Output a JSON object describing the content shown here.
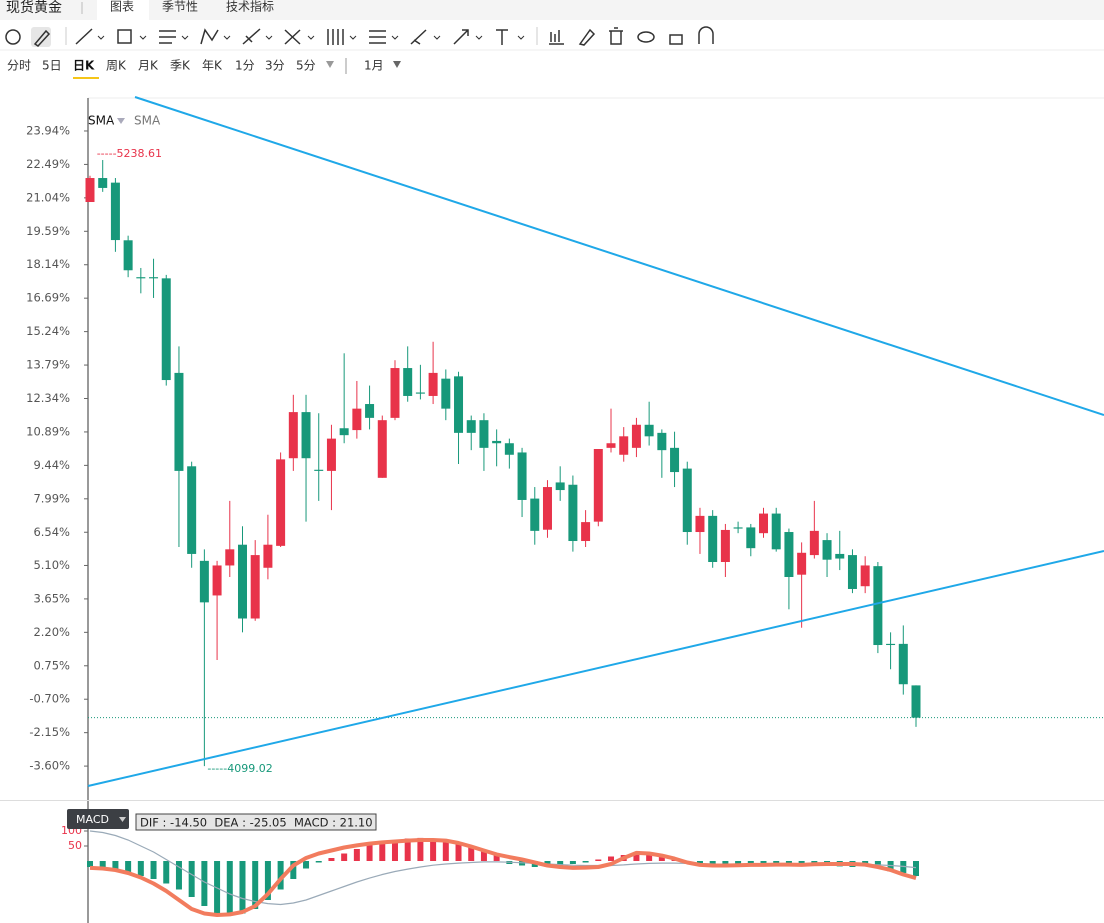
{
  "header": {
    "symbol": "现货黄金",
    "tabs": [
      "图表",
      "季节性",
      "技术指标"
    ]
  },
  "periods": [
    "分时",
    "5日",
    "日K",
    "周K",
    "月K",
    "季K",
    "年K",
    "1分",
    "3分",
    "5分"
  ],
  "period_extra": "1月",
  "chart_data": [
    {
      "type": "candlestick",
      "indicators": [
        "SMA",
        "SMA"
      ],
      "open": [
        20.86,
        21.9,
        21.7,
        19.2,
        17.6,
        17.6,
        17.55,
        13.45,
        9.4,
        5.3,
        3.8,
        5.1,
        6.0,
        2.8,
        5.0,
        5.95,
        9.75,
        11.75,
        9.25,
        9.2,
        11.05,
        10.97,
        12.1,
        8.9,
        11.5,
        13.66,
        12.6,
        12.45,
        13.2,
        13.3,
        11.4,
        11.4,
        10.5,
        10.4,
        10.0,
        8.0,
        6.65,
        8.7,
        8.6,
        6.16,
        7.0,
        10.2,
        9.9,
        10.2,
        11.2,
        10.85,
        10.2,
        9.3,
        6.55,
        7.25,
        5.25,
        6.75,
        6.75,
        6.5,
        7.35,
        6.55,
        4.7,
        5.55,
        6.2,
        5.6,
        5.55,
        4.2,
        5.07,
        1.7,
        1.7,
        -0.1
      ],
      "high": [
        22.0,
        22.68,
        21.9,
        19.4,
        18.0,
        18.4,
        17.7,
        14.6,
        9.6,
        5.8,
        5.3,
        7.9,
        6.8,
        6.2,
        7.3,
        10.0,
        12.5,
        12.5,
        11.7,
        11.2,
        14.3,
        13.1,
        12.9,
        11.6,
        14.0,
        14.6,
        13.8,
        14.8,
        13.6,
        13.5,
        11.6,
        11.7,
        11.0,
        10.6,
        10.2,
        8.5,
        8.8,
        9.4,
        9.0,
        7.5,
        10.15,
        11.9,
        11.1,
        11.5,
        12.2,
        11.0,
        10.9,
        9.6,
        7.6,
        7.5,
        6.9,
        7.0,
        6.9,
        7.6,
        7.6,
        6.7,
        6.1,
        7.9,
        6.5,
        6.6,
        5.8,
        5.5,
        5.25,
        2.2,
        2.5,
        -0.1
      ],
      "low": [
        20.86,
        21.3,
        18.7,
        17.6,
        16.9,
        16.7,
        12.9,
        5.9,
        5.0,
        -3.6,
        1.0,
        4.6,
        2.2,
        2.7,
        4.5,
        5.9,
        9.2,
        7.0,
        7.9,
        7.5,
        10.4,
        10.6,
        11.0,
        8.9,
        11.4,
        12.2,
        12.3,
        12.1,
        11.4,
        9.5,
        10.1,
        9.2,
        9.4,
        9.3,
        7.2,
        6.0,
        6.3,
        7.9,
        5.7,
        5.9,
        6.8,
        10.0,
        9.6,
        9.8,
        10.3,
        8.9,
        8.5,
        6.0,
        5.6,
        5.0,
        4.6,
        6.5,
        5.5,
        6.3,
        5.7,
        3.2,
        2.4,
        5.4,
        4.6,
        4.9,
        3.9,
        3.9,
        1.3,
        0.6,
        -0.5,
        -1.9
      ],
      "close": [
        21.9,
        21.47,
        19.21,
        17.9,
        17.55,
        17.55,
        13.14,
        9.2,
        5.6,
        3.5,
        5.1,
        5.8,
        2.8,
        5.55,
        6.0,
        9.7,
        11.75,
        9.75,
        9.2,
        10.6,
        10.75,
        11.9,
        11.5,
        11.4,
        13.66,
        12.45,
        12.55,
        13.45,
        11.9,
        10.85,
        10.85,
        10.2,
        10.4,
        9.9,
        7.94,
        6.6,
        8.5,
        8.37,
        6.16,
        6.98,
        10.15,
        10.4,
        10.7,
        11.2,
        10.7,
        10.1,
        9.15,
        6.55,
        7.25,
        5.25,
        6.64,
        6.7,
        5.85,
        7.35,
        5.8,
        4.6,
        5.65,
        6.6,
        5.35,
        5.4,
        4.08,
        5.1,
        1.65,
        1.65,
        -0.05,
        -1.5
      ],
      "up_color": "#e8334a",
      "down_color": "#17987a",
      "max_label": "-----5238.61",
      "min_label": "-----4099.02",
      "ylim": [
        -5.07,
        25.37
      ],
      "yticks": [
        {
          "value": 23.94,
          "label": "23.94%"
        },
        {
          "value": 22.49,
          "label": "22.49%"
        },
        {
          "value": 21.04,
          "label": "21.04%"
        },
        {
          "value": 19.59,
          "label": "19.59%"
        },
        {
          "value": 18.14,
          "label": "18.14%"
        },
        {
          "value": 16.69,
          "label": "16.69%"
        },
        {
          "value": 15.24,
          "label": "15.24%"
        },
        {
          "value": 13.79,
          "label": "13.79%"
        },
        {
          "value": 12.34,
          "label": "12.34%"
        },
        {
          "value": 10.89,
          "label": "10.89%"
        },
        {
          "value": 9.44,
          "label": "9.44%"
        },
        {
          "value": 7.99,
          "label": "7.99%"
        },
        {
          "value": 6.54,
          "label": "6.54%"
        },
        {
          "value": 5.1,
          "label": "5.10%"
        },
        {
          "value": 3.65,
          "label": "3.65%"
        },
        {
          "value": 2.2,
          "label": "2.20%"
        },
        {
          "value": 0.75,
          "label": "0.75%"
        },
        {
          "value": -0.7,
          "label": "-0.70%"
        },
        {
          "value": -2.15,
          "label": "-2.15%"
        },
        {
          "value": -3.6,
          "label": "-3.60%"
        }
      ]
    },
    {
      "type": "macd",
      "title": "MACD",
      "info": "DIF : -14.50  DEA : -25.05  MACD : 21.10",
      "histogram": [
        -20,
        -25,
        -30,
        -40,
        -50,
        -60,
        -75,
        -95,
        -120,
        -150,
        -175,
        -180,
        -175,
        -160,
        -130,
        -95,
        -60,
        -25,
        -5,
        10,
        25,
        40,
        55,
        60,
        70,
        75,
        77,
        72,
        65,
        55,
        45,
        35,
        20,
        -10,
        -15,
        -20,
        -20,
        -15,
        -10,
        -5,
        5,
        15,
        20,
        25,
        20,
        15,
        5,
        -10,
        -15,
        -20,
        -20,
        -18,
        -15,
        -12,
        -15,
        -18,
        -15,
        -12,
        -15,
        -18,
        -20,
        -18,
        -25,
        -35,
        -40,
        -50
      ],
      "dif": [
        -23,
        -25,
        -30,
        -40,
        -55,
        -75,
        -100,
        -130,
        -160,
        -175,
        -180,
        -178,
        -170,
        -150,
        -110,
        -60,
        -15,
        10,
        25,
        35,
        45,
        52,
        58,
        62,
        65,
        68,
        70,
        70,
        68,
        60,
        48,
        35,
        22,
        13,
        5,
        -5,
        -15,
        -20,
        -23,
        -22,
        -20,
        -10,
        10,
        27,
        25,
        18,
        8,
        -5,
        -13,
        -15,
        -15,
        -14,
        -13,
        -13,
        -12,
        -12,
        -13,
        -11,
        -10,
        -10,
        -10,
        -12,
        -20,
        -30,
        -45,
        -57
      ],
      "dea": [
        100,
        95,
        85,
        70,
        50,
        30,
        5,
        -20,
        -45,
        -70,
        -90,
        -110,
        -125,
        -135,
        -142,
        -145,
        -140,
        -130,
        -115,
        -100,
        -85,
        -70,
        -57,
        -45,
        -35,
        -27,
        -20,
        -14,
        -10,
        -7,
        -5,
        -3,
        -3,
        -4,
        -6,
        -8,
        -10,
        -12,
        -14,
        -15,
        -15,
        -15,
        -13,
        -10,
        -8,
        -7,
        -7,
        -8,
        -9,
        -10,
        -11,
        -12,
        -12,
        -12,
        -12,
        -12,
        -12,
        -12,
        -12,
        -12,
        -12,
        -12,
        -13,
        -15,
        -18,
        -22
      ],
      "dif_color": "#f27c5e",
      "dea_color": "#9aaab8",
      "up_color": "#e8334a",
      "down_color": "#17987a",
      "ylim": [
        -195,
        115
      ],
      "yticks": [
        100,
        50
      ]
    }
  ]
}
